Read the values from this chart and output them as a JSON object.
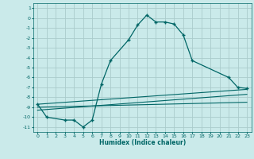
{
  "xlabel": "Humidex (Indice chaleur)",
  "ylabel": "",
  "bg_color": "#caeaea",
  "grid_color": "#aacccc",
  "line_color": "#006666",
  "xlim": [
    -0.5,
    23.5
  ],
  "ylim": [
    -11.5,
    1.5
  ],
  "yticks": [
    1,
    0,
    -1,
    -2,
    -3,
    -4,
    -5,
    -6,
    -7,
    -8,
    -9,
    -10,
    -11
  ],
  "xticks": [
    0,
    1,
    2,
    3,
    4,
    5,
    6,
    7,
    8,
    9,
    10,
    11,
    12,
    13,
    14,
    15,
    16,
    17,
    18,
    19,
    20,
    21,
    22,
    23
  ],
  "curve_x": [
    0,
    1,
    3,
    4,
    5,
    6,
    7,
    8,
    10,
    11,
    12,
    13,
    14,
    15,
    16,
    17,
    21,
    22,
    23
  ],
  "curve_y": [
    -8.7,
    -10.0,
    -10.3,
    -10.3,
    -11.0,
    -10.3,
    -6.7,
    -4.3,
    -2.2,
    -0.7,
    0.3,
    -0.4,
    -0.4,
    -0.6,
    -1.7,
    -4.3,
    -6.0,
    -7.0,
    -7.1
  ],
  "line1_x": [
    0,
    23
  ],
  "line1_y": [
    -8.7,
    -7.2
  ],
  "line2_x": [
    0,
    23
  ],
  "line2_y": [
    -9.3,
    -7.7
  ],
  "line3_x": [
    0,
    23
  ],
  "line3_y": [
    -9.0,
    -8.5
  ]
}
